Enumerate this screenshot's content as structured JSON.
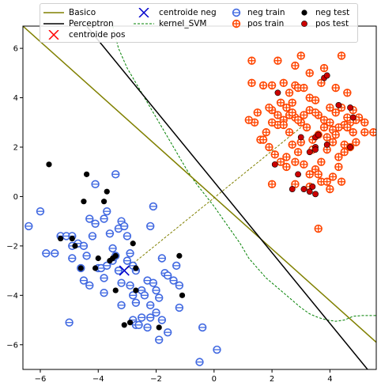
{
  "chart_data": {
    "type": "scatter",
    "xlim": [
      -6.6,
      5.6
    ],
    "ylim": [
      -7.0,
      6.9
    ],
    "xticks": [
      -6,
      -4,
      -2,
      0,
      2,
      4
    ],
    "yticks": [
      -6,
      -4,
      -2,
      0,
      2,
      4,
      6
    ],
    "xtick_labels": [
      "−6",
      "−4",
      "−2",
      "0",
      "2",
      "4"
    ],
    "ytick_labels": [
      "−6",
      "−4",
      "−2",
      "0",
      "2",
      "4",
      "6"
    ],
    "grid": false,
    "legend_position": "top",
    "colors": {
      "basico": "#808000",
      "perceptron": "#000000",
      "kernel": "#008000",
      "centroide_neg": "#0000cc",
      "centroide_pos": "#ff0000",
      "neg_train": "#4169e1",
      "pos_train": "#ff4500",
      "neg_test": "#000000",
      "pos_test": "#cc0000"
    },
    "legend": [
      {
        "key": "basico",
        "label": "Basico",
        "marker": "line"
      },
      {
        "key": "perceptron",
        "label": "Perceptron",
        "marker": "line"
      },
      {
        "key": "centroide_pos",
        "label": "centroide pos",
        "marker": "x"
      },
      {
        "key": "centroide_neg",
        "label": "centroide neg",
        "marker": "x"
      },
      {
        "key": "kernel",
        "label": "kernel_SVM",
        "marker": "dashed"
      },
      {
        "key": "neg_train",
        "label": "neg train",
        "marker": "ring"
      },
      {
        "key": "pos_train",
        "label": "pos train",
        "marker": "ring"
      },
      {
        "key": "neg_test",
        "label": "neg test",
        "marker": "dot"
      },
      {
        "key": "pos_test",
        "label": "pos test",
        "marker": "dot"
      }
    ],
    "lines": {
      "basico": {
        "x": [
          -6.6,
          5.6
        ],
        "y": [
          6.9,
          -5.9
        ]
      },
      "perceptron": {
        "x": [
          -4.4,
          5.3
        ],
        "y": [
          6.9,
          -7.0
        ]
      },
      "kernel_svm": {
        "x": [
          -3.5,
          -3.3,
          -3.0,
          -2.7,
          -2.4,
          -2.1,
          -1.8,
          -1.5,
          -1.2,
          -0.9,
          -0.6,
          -0.3,
          0.0,
          0.3,
          0.6,
          0.9,
          1.2,
          1.5,
          1.8,
          2.1,
          2.4,
          2.7,
          3.0,
          3.3,
          3.6,
          3.9,
          4.2,
          4.5,
          4.8,
          5.1,
          5.4,
          5.6
        ],
        "y": [
          6.9,
          6.0,
          5.2,
          4.6,
          4.0,
          3.4,
          2.8,
          2.2,
          1.6,
          1.0,
          0.5,
          0.05,
          -0.4,
          -0.9,
          -1.4,
          -1.9,
          -2.5,
          -2.9,
          -3.3,
          -3.6,
          -3.9,
          -4.2,
          -4.5,
          -4.75,
          -4.9,
          -5.0,
          -5.05,
          -5.0,
          -4.85,
          -4.82,
          -4.82,
          -4.82
        ]
      },
      "centroid_link": {
        "x": [
          -3.1,
          3.0
        ],
        "y": [
          -3.0,
          2.8
        ]
      }
    },
    "centroide_neg": [
      -3.1,
      -3.0
    ],
    "centroide_pos": [
      3.0,
      2.8
    ],
    "series": [
      {
        "name": "neg train",
        "points": [
          [
            -6.4,
            -1.2
          ],
          [
            -6.0,
            -0.6
          ],
          [
            -5.8,
            -2.3
          ],
          [
            -5.5,
            -2.3
          ],
          [
            -5.3,
            -1.6
          ],
          [
            -5.1,
            -1.6
          ],
          [
            -4.9,
            -1.6
          ],
          [
            -4.9,
            -2.0
          ],
          [
            -4.9,
            -2.5
          ],
          [
            -4.7,
            -1.9
          ],
          [
            -4.6,
            -2.9
          ],
          [
            -4.5,
            -3.4
          ],
          [
            -4.3,
            -3.6
          ],
          [
            -4.4,
            -2.4
          ],
          [
            -4.2,
            -1.6
          ],
          [
            -4.3,
            -0.9
          ],
          [
            -4.1,
            -1.1
          ],
          [
            -4.1,
            0.5
          ],
          [
            -4.0,
            -2.9
          ],
          [
            -3.8,
            -3.3
          ],
          [
            -3.8,
            -0.9
          ],
          [
            -3.7,
            -0.6
          ],
          [
            -3.6,
            -1.5
          ],
          [
            -3.5,
            -2.1
          ],
          [
            -3.4,
            -2.4
          ],
          [
            -3.3,
            -1.3
          ],
          [
            -3.2,
            -1.0
          ],
          [
            -3.3,
            -3.0
          ],
          [
            -3.2,
            -3.5
          ],
          [
            -3.2,
            -4.4
          ],
          [
            -3.1,
            -1.2
          ],
          [
            -3.0,
            -1.6
          ],
          [
            -2.9,
            -2.3
          ],
          [
            -2.8,
            -2.8
          ],
          [
            -2.7,
            -3.0
          ],
          [
            -2.9,
            -3.6
          ],
          [
            -2.8,
            -4.0
          ],
          [
            -3.4,
            0.9
          ],
          [
            -3.0,
            -2.6
          ],
          [
            -2.8,
            -5.0
          ],
          [
            -2.7,
            -5.2
          ],
          [
            -2.6,
            -5.2
          ],
          [
            -2.5,
            -3.8
          ],
          [
            -2.3,
            -3.4
          ],
          [
            -2.4,
            -4.0
          ],
          [
            -2.2,
            -4.4
          ],
          [
            -2.1,
            -3.5
          ],
          [
            -2.0,
            -3.8
          ],
          [
            -2.1,
            -0.4
          ],
          [
            -2.2,
            -1.2
          ],
          [
            -1.8,
            -2.5
          ],
          [
            -1.7,
            -3.1
          ],
          [
            -1.6,
            -3.2
          ],
          [
            -1.4,
            -3.4
          ],
          [
            -1.3,
            -2.8
          ],
          [
            -1.2,
            -3.6
          ],
          [
            -1.9,
            -4.1
          ],
          [
            -2.0,
            -4.7
          ],
          [
            -1.2,
            -4.5
          ],
          [
            -1.8,
            -5.0
          ],
          [
            -1.6,
            -5.5
          ],
          [
            -1.9,
            -5.8
          ],
          [
            -2.3,
            -5.3
          ],
          [
            -2.5,
            -4.9
          ],
          [
            -2.2,
            -4.9
          ],
          [
            -2.7,
            -4.3
          ],
          [
            -0.5,
            -6.7
          ],
          [
            -0.4,
            -5.3
          ],
          [
            0.1,
            -6.2
          ],
          [
            -5.0,
            -5.1
          ],
          [
            -3.9,
            -2.9
          ],
          [
            -4.5,
            -2.0
          ],
          [
            -3.7,
            -2.8
          ],
          [
            -3.5,
            -2.6
          ],
          [
            -3.8,
            -3.9
          ]
        ]
      },
      {
        "name": "pos train",
        "points": [
          [
            1.3,
            5.5
          ],
          [
            2.2,
            5.5
          ],
          [
            2.8,
            5.3
          ],
          [
            3.0,
            5.7
          ],
          [
            3.3,
            5.0
          ],
          [
            3.8,
            5.2
          ],
          [
            4.4,
            5.7
          ],
          [
            1.7,
            4.5
          ],
          [
            1.3,
            4.6
          ],
          [
            2.0,
            4.5
          ],
          [
            2.4,
            4.6
          ],
          [
            2.6,
            4.2
          ],
          [
            2.8,
            4.5
          ],
          [
            2.9,
            4.4
          ],
          [
            3.1,
            4.4
          ],
          [
            3.3,
            4.0
          ],
          [
            3.5,
            3.9
          ],
          [
            3.7,
            4.6
          ],
          [
            4.2,
            4.4
          ],
          [
            4.6,
            4.2
          ],
          [
            4.8,
            3.5
          ],
          [
            5.0,
            3.2
          ],
          [
            5.2,
            3.0
          ],
          [
            4.9,
            3.1
          ],
          [
            4.7,
            3.0
          ],
          [
            4.5,
            2.9
          ],
          [
            4.3,
            2.8
          ],
          [
            4.1,
            2.7
          ],
          [
            3.9,
            2.4
          ],
          [
            3.6,
            2.5
          ],
          [
            3.4,
            2.3
          ],
          [
            3.2,
            2.8
          ],
          [
            3.0,
            3.0
          ],
          [
            2.8,
            3.2
          ],
          [
            2.6,
            3.3
          ],
          [
            2.4,
            3.1
          ],
          [
            2.2,
            2.9
          ],
          [
            2.0,
            3.0
          ],
          [
            1.8,
            2.6
          ],
          [
            1.6,
            2.3
          ],
          [
            1.4,
            3.0
          ],
          [
            1.2,
            3.1
          ],
          [
            1.5,
            3.4
          ],
          [
            2.0,
            3.5
          ],
          [
            2.3,
            3.8
          ],
          [
            2.5,
            3.6
          ],
          [
            2.7,
            3.4
          ],
          [
            2.9,
            3.1
          ],
          [
            3.1,
            3.3
          ],
          [
            3.3,
            3.5
          ],
          [
            3.6,
            3.3
          ],
          [
            3.8,
            3.1
          ],
          [
            4.0,
            3.0
          ],
          [
            4.2,
            3.4
          ],
          [
            4.4,
            3.6
          ],
          [
            4.6,
            3.2
          ],
          [
            4.8,
            2.6
          ],
          [
            4.5,
            2.1
          ],
          [
            4.3,
            1.6
          ],
          [
            4.1,
            2.2
          ],
          [
            3.9,
            1.9
          ],
          [
            3.7,
            1.4
          ],
          [
            3.5,
            1.1
          ],
          [
            3.3,
            0.9
          ],
          [
            3.1,
            1.3
          ],
          [
            2.9,
            1.8
          ],
          [
            2.7,
            2.1
          ],
          [
            2.5,
            1.6
          ],
          [
            2.3,
            1.4
          ],
          [
            2.1,
            1.7
          ],
          [
            1.9,
            2.0
          ],
          [
            1.7,
            2.3
          ],
          [
            2.5,
            1.2
          ],
          [
            2.8,
            1.4
          ],
          [
            3.6,
            0.9
          ],
          [
            3.7,
            0.6
          ],
          [
            3.9,
            0.6
          ],
          [
            4.1,
            0.8
          ],
          [
            4.3,
            1.2
          ],
          [
            4.5,
            1.8
          ],
          [
            4.7,
            2.0
          ],
          [
            4.9,
            2.2
          ],
          [
            5.2,
            2.6
          ],
          [
            5.5,
            2.6
          ],
          [
            2.0,
            0.5
          ],
          [
            2.8,
            0.5
          ],
          [
            3.3,
            0.4
          ],
          [
            4.0,
            0.3
          ],
          [
            3.6,
            -1.3
          ],
          [
            4.4,
            0.6
          ],
          [
            2.4,
            2.9
          ],
          [
            2.6,
            2.6
          ],
          [
            3.0,
            2.2
          ],
          [
            3.4,
            1.9
          ],
          [
            3.8,
            2.8
          ],
          [
            4.0,
            3.6
          ],
          [
            2.2,
            3.3
          ],
          [
            1.9,
            3.6
          ],
          [
            2.7,
            3.8
          ],
          [
            3.5,
            3.4
          ],
          [
            4.2,
            2.5
          ],
          [
            4.6,
            2.8
          ]
        ]
      },
      {
        "name": "neg test",
        "points": [
          [
            -5.7,
            1.3
          ],
          [
            -4.4,
            0.9
          ],
          [
            -4.5,
            -0.2
          ],
          [
            -3.8,
            -0.2
          ],
          [
            -3.7,
            0.2
          ],
          [
            -5.3,
            -1.7
          ],
          [
            -4.9,
            -1.7
          ],
          [
            -4.8,
            -2.0
          ],
          [
            -4.6,
            -2.9
          ],
          [
            -4.1,
            -2.9
          ],
          [
            -4.0,
            -2.5
          ],
          [
            -3.5,
            -2.5
          ],
          [
            -3.4,
            -2.4
          ],
          [
            -3.4,
            -3.8
          ],
          [
            -3.1,
            -5.2
          ],
          [
            -2.9,
            -5.1
          ],
          [
            -2.7,
            -3.8
          ],
          [
            -2.7,
            -2.9
          ],
          [
            -2.8,
            -1.9
          ],
          [
            -1.9,
            -5.3
          ],
          [
            -1.2,
            -2.4
          ],
          [
            -1.1,
            -4.0
          ],
          [
            -3.6,
            -2.6
          ]
        ]
      },
      {
        "name": "pos test",
        "points": [
          [
            2.2,
            4.2
          ],
          [
            3.8,
            4.8
          ],
          [
            3.9,
            4.9
          ],
          [
            4.3,
            3.7
          ],
          [
            4.7,
            3.6
          ],
          [
            4.8,
            3.2
          ],
          [
            3.5,
            2.4
          ],
          [
            3.6,
            2.5
          ],
          [
            3.5,
            2.0
          ],
          [
            3.5,
            1.9
          ],
          [
            3.3,
            1.8
          ],
          [
            3.0,
            2.4
          ],
          [
            2.1,
            1.3
          ],
          [
            3.9,
            2.1
          ],
          [
            4.7,
            2.0
          ],
          [
            2.9,
            0.9
          ],
          [
            2.7,
            0.3
          ],
          [
            3.1,
            0.3
          ],
          [
            3.3,
            0.2
          ],
          [
            3.5,
            0.1
          ],
          [
            3.4,
            0.4
          ]
        ]
      }
    ]
  }
}
